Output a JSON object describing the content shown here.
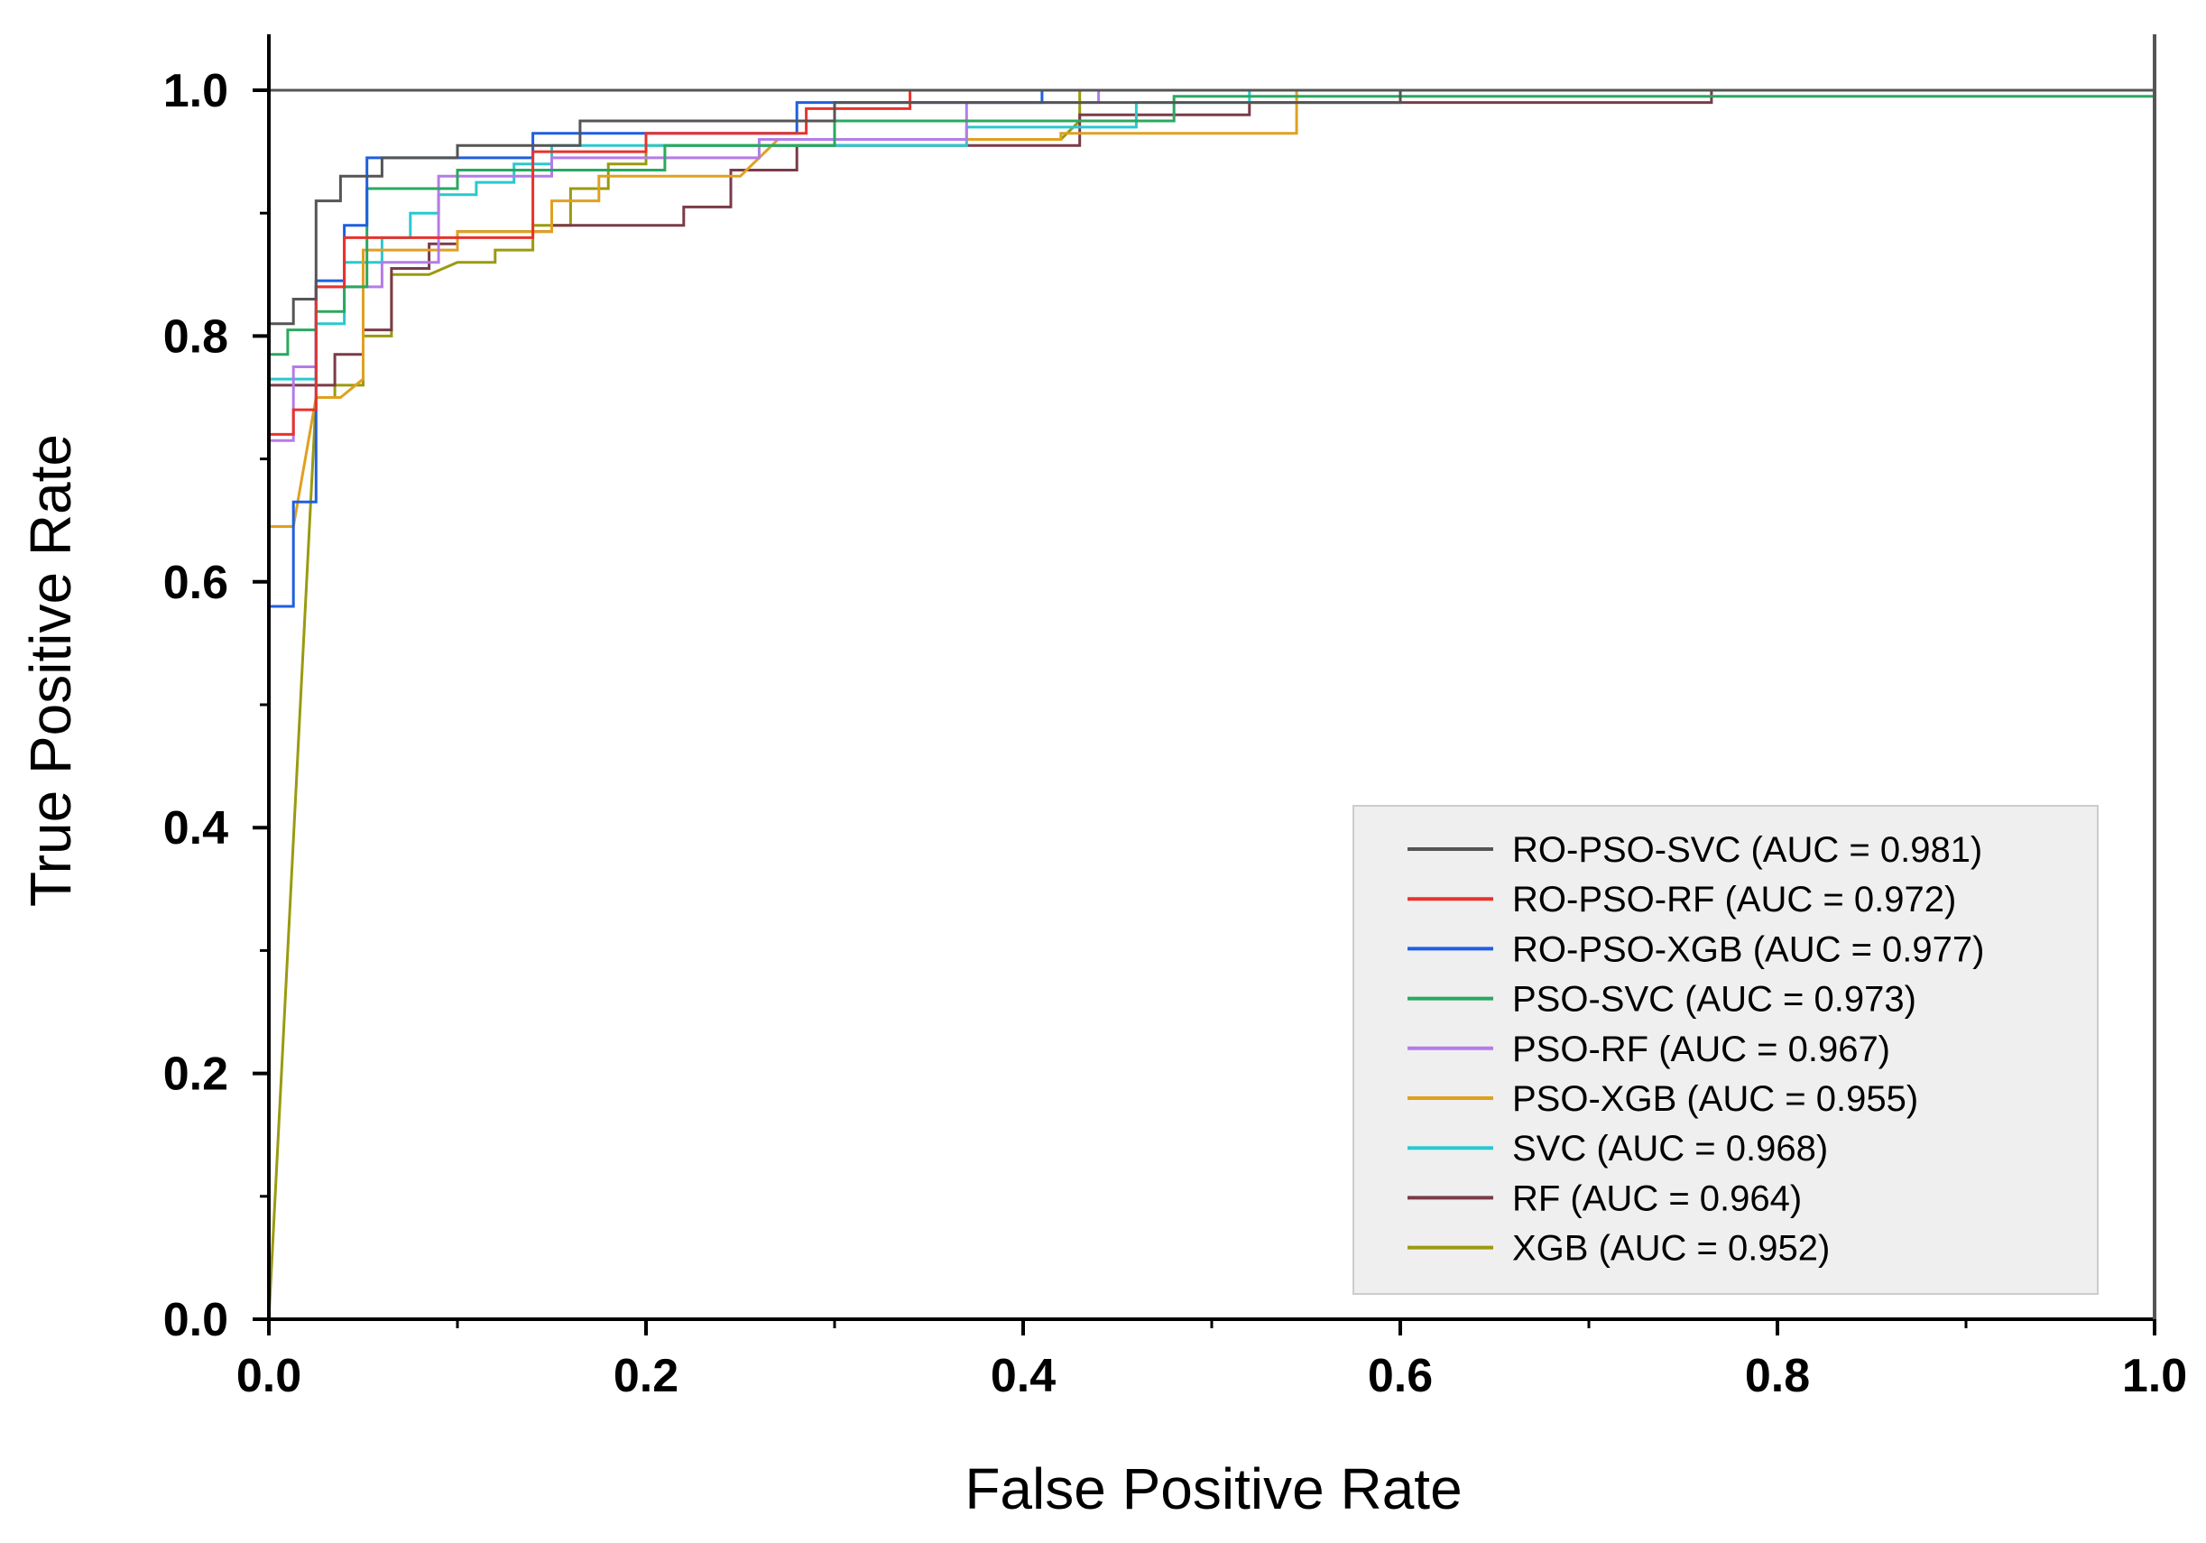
{
  "chart_data": {
    "type": "line",
    "title": "",
    "xlabel": "False Positive Rate",
    "ylabel": "True Positive Rate",
    "xlim": [
      0,
      1
    ],
    "ylim": [
      0,
      1
    ],
    "x_ticks": [
      "0.0",
      "0.2",
      "0.4",
      "0.6",
      "0.8",
      "1.0"
    ],
    "y_ticks": [
      "0.0",
      "0.2",
      "0.4",
      "0.6",
      "0.8",
      "1.0"
    ],
    "legend_position": "bottom-right",
    "grid": false,
    "reference_line": {
      "y": 1.0
    },
    "series": [
      {
        "name": "RO-PSO-SVC",
        "label": "RO-PSO-SVC (AUC = 0.981)",
        "auc": 0.981,
        "color": "#555555",
        "points": [
          [
            0,
            0
          ],
          [
            0,
            0.81
          ],
          [
            0.013,
            0.81
          ],
          [
            0.013,
            0.83
          ],
          [
            0.025,
            0.83
          ],
          [
            0.025,
            0.91
          ],
          [
            0.038,
            0.91
          ],
          [
            0.038,
            0.93
          ],
          [
            0.06,
            0.93
          ],
          [
            0.06,
            0.945
          ],
          [
            0.1,
            0.945
          ],
          [
            0.1,
            0.955
          ],
          [
            0.165,
            0.955
          ],
          [
            0.165,
            0.975
          ],
          [
            0.3,
            0.975
          ],
          [
            0.3,
            0.99
          ],
          [
            0.6,
            0.99
          ],
          [
            0.6,
            1.0
          ],
          [
            1.0,
            1.0
          ]
        ]
      },
      {
        "name": "RO-PSO-RF",
        "label": "RO-PSO-RF (AUC = 0.972)",
        "auc": 0.972,
        "color": "#e8332c",
        "points": [
          [
            0,
            0
          ],
          [
            0,
            0.72
          ],
          [
            0.013,
            0.72
          ],
          [
            0.013,
            0.74
          ],
          [
            0.025,
            0.74
          ],
          [
            0.025,
            0.84
          ],
          [
            0.04,
            0.84
          ],
          [
            0.04,
            0.88
          ],
          [
            0.14,
            0.88
          ],
          [
            0.14,
            0.95
          ],
          [
            0.2,
            0.95
          ],
          [
            0.2,
            0.965
          ],
          [
            0.285,
            0.965
          ],
          [
            0.285,
            0.985
          ],
          [
            0.34,
            0.985
          ],
          [
            0.34,
            1.0
          ],
          [
            1.0,
            1.0
          ]
        ]
      },
      {
        "name": "RO-PSO-XGB",
        "label": "RO-PSO-XGB (AUC = 0.977)",
        "auc": 0.977,
        "color": "#1f5fe0",
        "points": [
          [
            0,
            0
          ],
          [
            0,
            0.58
          ],
          [
            0.013,
            0.58
          ],
          [
            0.013,
            0.665
          ],
          [
            0.025,
            0.665
          ],
          [
            0.025,
            0.845
          ],
          [
            0.04,
            0.845
          ],
          [
            0.04,
            0.89
          ],
          [
            0.052,
            0.89
          ],
          [
            0.052,
            0.945
          ],
          [
            0.14,
            0.945
          ],
          [
            0.14,
            0.965
          ],
          [
            0.28,
            0.965
          ],
          [
            0.28,
            0.99
          ],
          [
            0.41,
            0.99
          ],
          [
            0.41,
            1.0
          ],
          [
            1.0,
            1.0
          ]
        ]
      },
      {
        "name": "PSO-SVC",
        "label": "PSO-SVC (AUC = 0.973)",
        "auc": 0.973,
        "color": "#2aa860",
        "points": [
          [
            0,
            0
          ],
          [
            0,
            0.785
          ],
          [
            0.01,
            0.785
          ],
          [
            0.01,
            0.805
          ],
          [
            0.025,
            0.805
          ],
          [
            0.025,
            0.82
          ],
          [
            0.04,
            0.82
          ],
          [
            0.04,
            0.84
          ],
          [
            0.052,
            0.84
          ],
          [
            0.052,
            0.92
          ],
          [
            0.1,
            0.92
          ],
          [
            0.1,
            0.935
          ],
          [
            0.21,
            0.935
          ],
          [
            0.21,
            0.955
          ],
          [
            0.3,
            0.955
          ],
          [
            0.3,
            0.975
          ],
          [
            0.48,
            0.975
          ],
          [
            0.48,
            0.995
          ],
          [
            1.0,
            0.995
          ],
          [
            1.0,
            1.0
          ]
        ]
      },
      {
        "name": "PSO-RF",
        "label": "PSO-RF (AUC = 0.967)",
        "auc": 0.967,
        "color": "#b57be8",
        "points": [
          [
            0,
            0
          ],
          [
            0,
            0.715
          ],
          [
            0.013,
            0.715
          ],
          [
            0.013,
            0.775
          ],
          [
            0.025,
            0.775
          ],
          [
            0.025,
            0.84
          ],
          [
            0.06,
            0.84
          ],
          [
            0.06,
            0.86
          ],
          [
            0.09,
            0.86
          ],
          [
            0.09,
            0.93
          ],
          [
            0.15,
            0.93
          ],
          [
            0.15,
            0.945
          ],
          [
            0.26,
            0.945
          ],
          [
            0.26,
            0.96
          ],
          [
            0.37,
            0.96
          ],
          [
            0.37,
            0.99
          ],
          [
            0.44,
            0.99
          ],
          [
            0.44,
            1.0
          ],
          [
            1.0,
            1.0
          ]
        ]
      },
      {
        "name": "PSO-XGB",
        "label": "PSO-XGB (AUC = 0.955)",
        "auc": 0.955,
        "color": "#e0a020",
        "points": [
          [
            0,
            0
          ],
          [
            0,
            0.645
          ],
          [
            0.013,
            0.645
          ],
          [
            0.025,
            0.75
          ],
          [
            0.038,
            0.75
          ],
          [
            0.05,
            0.765
          ],
          [
            0.05,
            0.87
          ],
          [
            0.1,
            0.87
          ],
          [
            0.1,
            0.885
          ],
          [
            0.15,
            0.885
          ],
          [
            0.15,
            0.91
          ],
          [
            0.175,
            0.91
          ],
          [
            0.175,
            0.93
          ],
          [
            0.25,
            0.93
          ],
          [
            0.27,
            0.96
          ],
          [
            0.42,
            0.96
          ],
          [
            0.42,
            0.965
          ],
          [
            0.545,
            0.965
          ],
          [
            0.545,
            1.0
          ],
          [
            1.0,
            1.0
          ]
        ]
      },
      {
        "name": "SVC",
        "label": "SVC (AUC = 0.968)",
        "auc": 0.968,
        "color": "#2ac8d0",
        "points": [
          [
            0,
            0
          ],
          [
            0,
            0.765
          ],
          [
            0.025,
            0.765
          ],
          [
            0.025,
            0.81
          ],
          [
            0.04,
            0.81
          ],
          [
            0.04,
            0.86
          ],
          [
            0.06,
            0.86
          ],
          [
            0.06,
            0.88
          ],
          [
            0.075,
            0.88
          ],
          [
            0.075,
            0.9
          ],
          [
            0.09,
            0.9
          ],
          [
            0.09,
            0.915
          ],
          [
            0.11,
            0.915
          ],
          [
            0.11,
            0.925
          ],
          [
            0.13,
            0.925
          ],
          [
            0.13,
            0.94
          ],
          [
            0.15,
            0.94
          ],
          [
            0.15,
            0.955
          ],
          [
            0.37,
            0.955
          ],
          [
            0.37,
            0.97
          ],
          [
            0.46,
            0.97
          ],
          [
            0.46,
            0.99
          ],
          [
            0.52,
            0.99
          ],
          [
            0.52,
            1.0
          ],
          [
            1.0,
            1.0
          ]
        ]
      },
      {
        "name": "RF",
        "label": "RF (AUC = 0.964)",
        "auc": 0.964,
        "color": "#7a3b48",
        "points": [
          [
            0,
            0
          ],
          [
            0,
            0.76
          ],
          [
            0.035,
            0.76
          ],
          [
            0.035,
            0.785
          ],
          [
            0.05,
            0.785
          ],
          [
            0.05,
            0.805
          ],
          [
            0.065,
            0.805
          ],
          [
            0.065,
            0.855
          ],
          [
            0.085,
            0.855
          ],
          [
            0.085,
            0.875
          ],
          [
            0.1,
            0.875
          ],
          [
            0.1,
            0.885
          ],
          [
            0.15,
            0.885
          ],
          [
            0.15,
            0.89
          ],
          [
            0.22,
            0.89
          ],
          [
            0.22,
            0.905
          ],
          [
            0.245,
            0.905
          ],
          [
            0.245,
            0.935
          ],
          [
            0.28,
            0.935
          ],
          [
            0.28,
            0.955
          ],
          [
            0.43,
            0.955
          ],
          [
            0.43,
            0.98
          ],
          [
            0.52,
            0.98
          ],
          [
            0.52,
            0.99
          ],
          [
            0.765,
            0.99
          ],
          [
            0.765,
            1.0
          ],
          [
            1.0,
            1.0
          ]
        ]
      },
      {
        "name": "XGB",
        "label": "XGB (AUC = 0.952)",
        "auc": 0.952,
        "color": "#9a9a10",
        "points": [
          [
            0,
            0
          ],
          [
            0.025,
            0.75
          ],
          [
            0.035,
            0.75
          ],
          [
            0.035,
            0.76
          ],
          [
            0.05,
            0.76
          ],
          [
            0.05,
            0.8
          ],
          [
            0.065,
            0.8
          ],
          [
            0.065,
            0.85
          ],
          [
            0.085,
            0.85
          ],
          [
            0.1,
            0.86
          ],
          [
            0.12,
            0.86
          ],
          [
            0.12,
            0.87
          ],
          [
            0.14,
            0.87
          ],
          [
            0.14,
            0.89
          ],
          [
            0.16,
            0.89
          ],
          [
            0.16,
            0.92
          ],
          [
            0.18,
            0.92
          ],
          [
            0.18,
            0.94
          ],
          [
            0.2,
            0.94
          ],
          [
            0.2,
            0.955
          ],
          [
            0.3,
            0.955
          ],
          [
            0.3,
            0.96
          ],
          [
            0.42,
            0.96
          ],
          [
            0.43,
            0.975
          ],
          [
            0.43,
            1.0
          ],
          [
            1.0,
            1.0
          ]
        ]
      }
    ]
  }
}
